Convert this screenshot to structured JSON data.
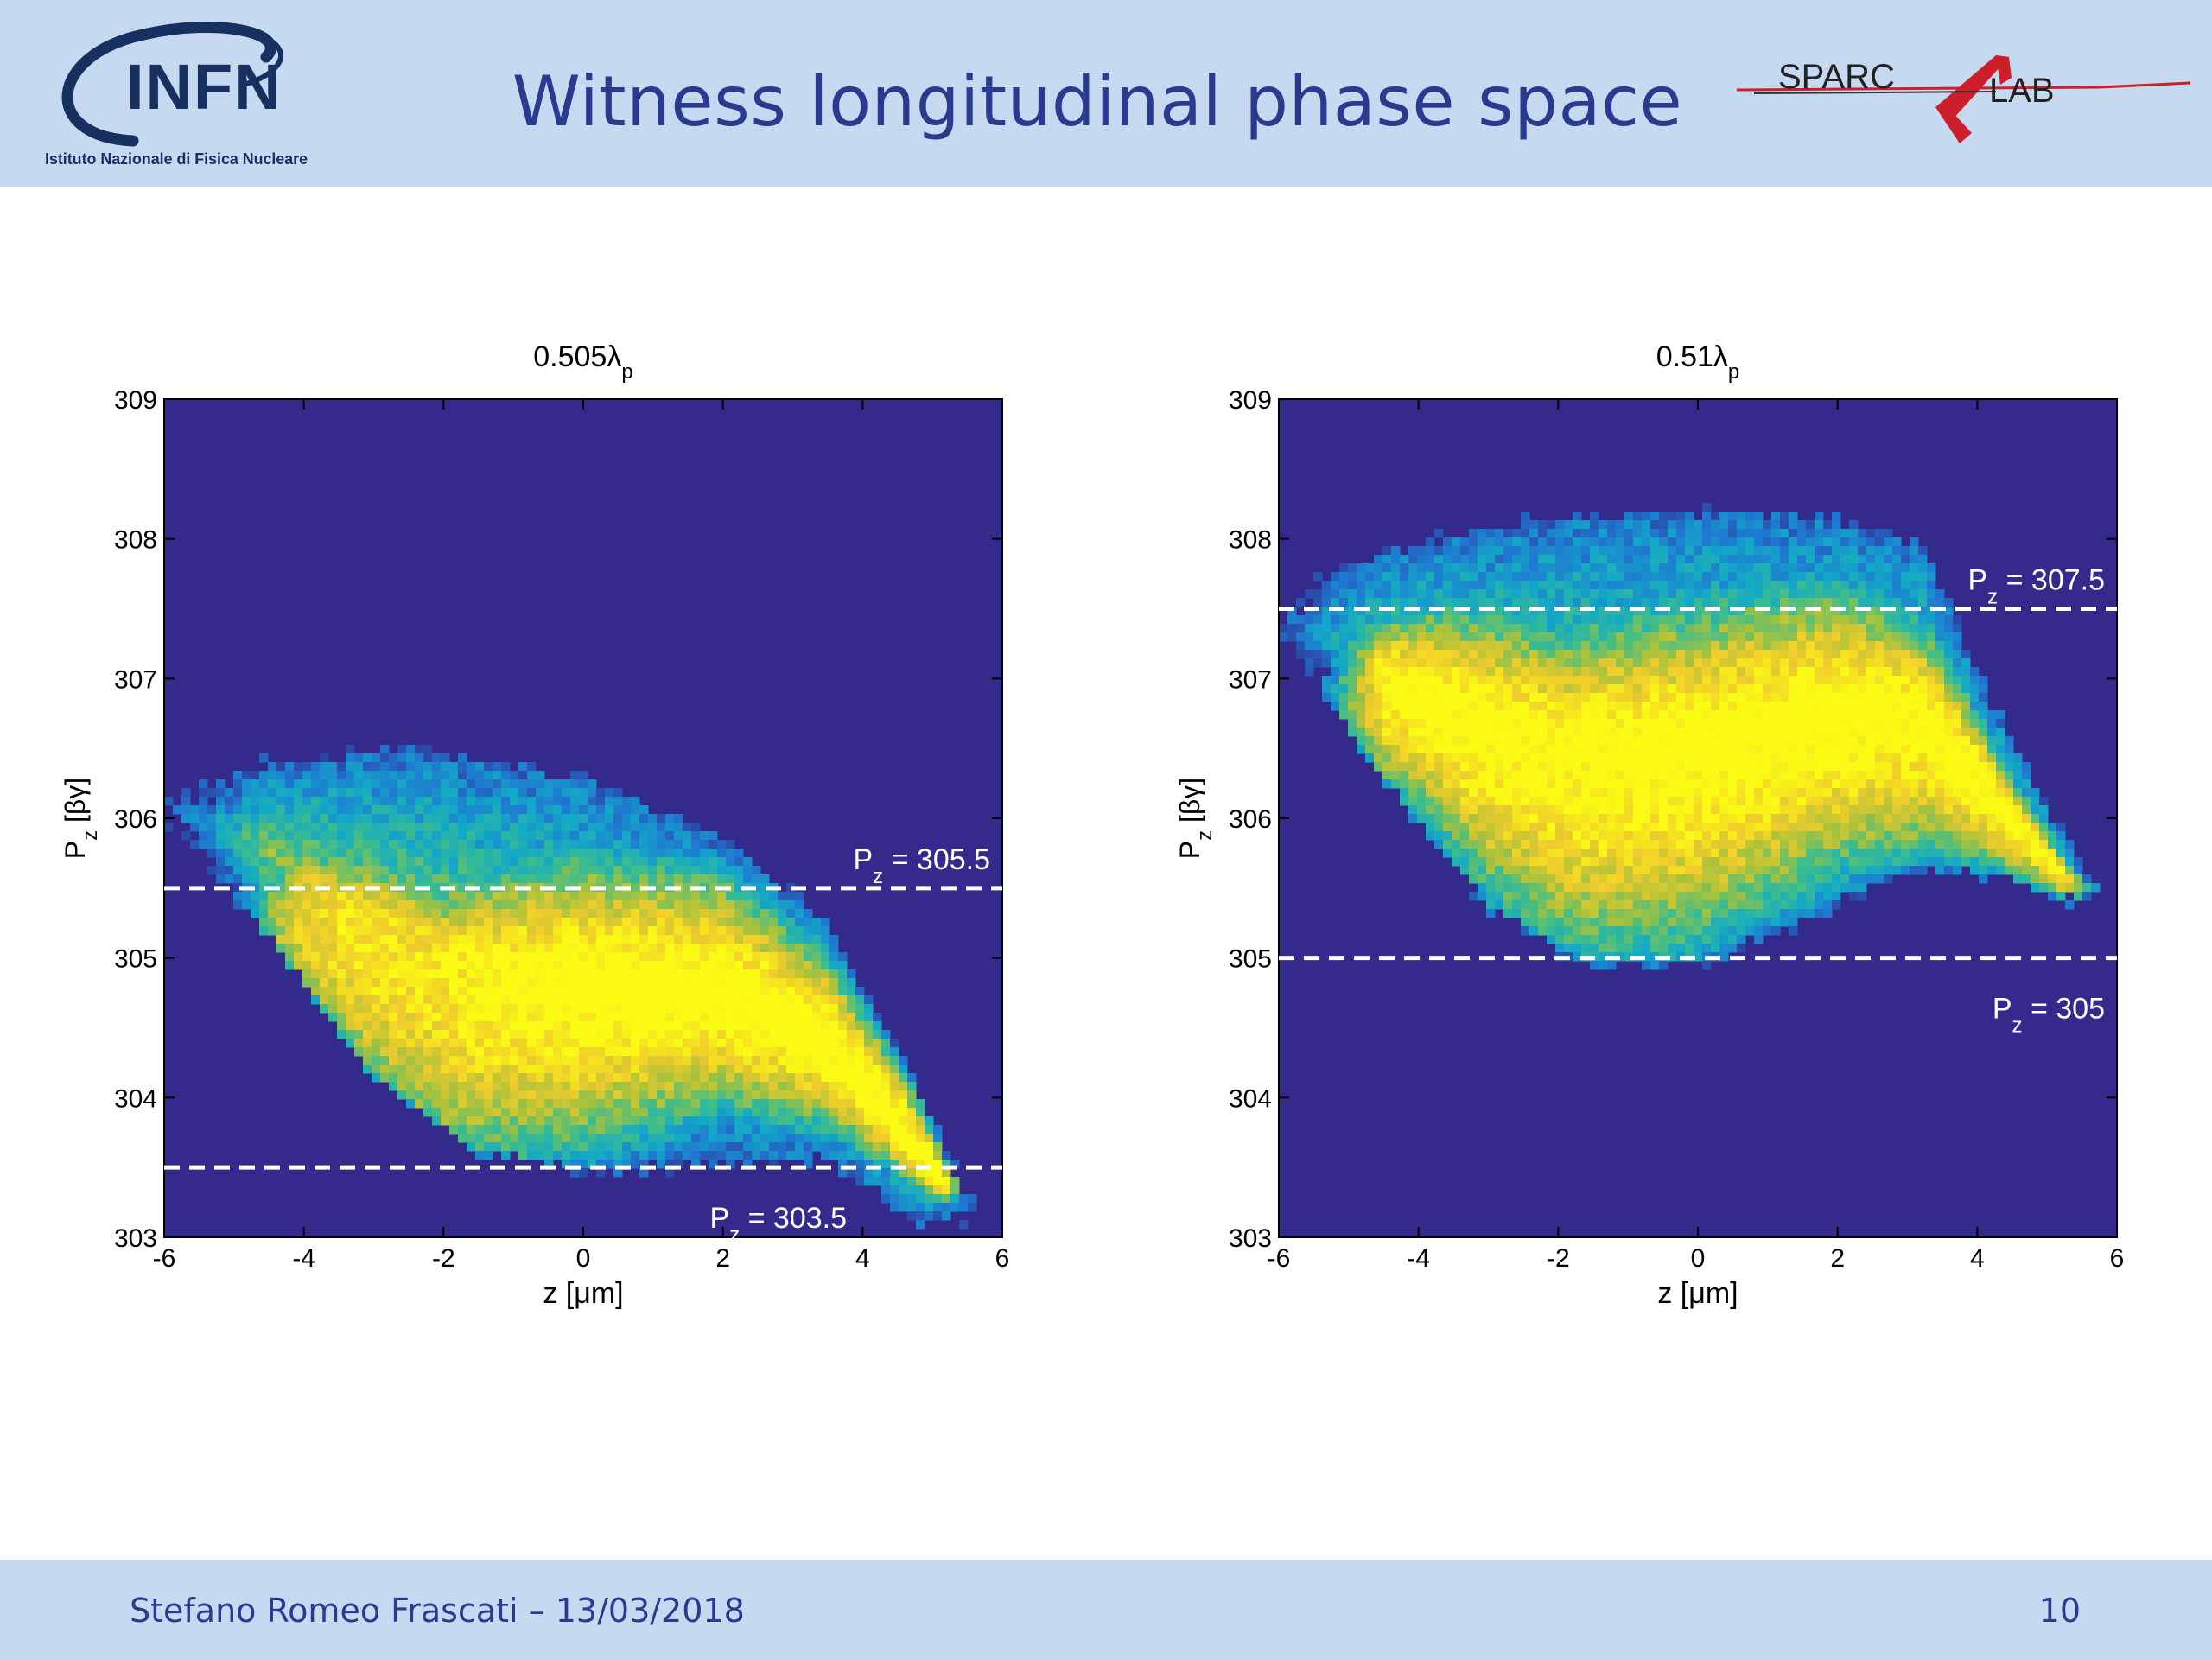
{
  "slide": {
    "title": "Witness longitudinal phase space",
    "author_date": "Stefano Romeo Frascati – 13/03/2018",
    "page_number": "10"
  },
  "logos": {
    "left": {
      "name": "infn-logo",
      "text": "INFN",
      "subtitle": "Istituto Nazionale di Fisica Nucleare"
    },
    "right": {
      "name": "sparc-lab-logo",
      "text_a": "SPARC",
      "text_b": "LAB"
    }
  },
  "colors": {
    "header_bg": "#c5d9f1",
    "title_text": "#2a3a8f",
    "plot_bg": "#332a8c",
    "dashed_line": "#ffffff",
    "colormap": [
      "#332a8c",
      "#1f78d1",
      "#13a9c7",
      "#3dbd8c",
      "#a8c23c",
      "#f0cc2c",
      "#fafa14"
    ]
  },
  "chart_data": [
    {
      "type": "heatmap",
      "title": "0.505λ",
      "title_subscript": "p",
      "xlabel": "z [μm]",
      "ylabel": "P",
      "ylabel_subscript": "z",
      "ylabel_unit": "[βγ]",
      "xlim": [
        -6,
        6
      ],
      "ylim": [
        303,
        309
      ],
      "xticks": [
        "-6",
        "-4",
        "-2",
        "0",
        "2",
        "4",
        "6"
      ],
      "yticks": [
        "303",
        "304",
        "305",
        "306",
        "307",
        "308",
        "309"
      ],
      "distribution": {
        "z_range": [
          -5.8,
          5.5
        ],
        "top_edge": [
          [
            -5.8,
            306.1
          ],
          [
            -4.5,
            306.35
          ],
          [
            -2.5,
            306.45
          ],
          [
            0,
            306.25
          ],
          [
            2,
            305.8
          ],
          [
            3.5,
            305.2
          ],
          [
            4.5,
            304.3
          ],
          [
            5.5,
            303.25
          ]
        ],
        "bottom_edge": [
          [
            -5.8,
            305.95
          ],
          [
            -4.5,
            305.2
          ],
          [
            -3,
            304.2
          ],
          [
            -1.5,
            303.65
          ],
          [
            0,
            303.5
          ],
          [
            2,
            303.6
          ],
          [
            3.5,
            303.6
          ],
          [
            4.8,
            303.15
          ],
          [
            5.5,
            303.2
          ]
        ],
        "peak_ridge": [
          [
            -4,
            305.0
          ],
          [
            -2,
            304.3
          ],
          [
            0,
            304.6
          ],
          [
            2,
            304.8
          ],
          [
            3.5,
            304.4
          ],
          [
            4.5,
            303.9
          ],
          [
            5.2,
            303.4
          ]
        ]
      },
      "lines": [
        {
          "y": 305.5,
          "label_p": "P",
          "label_sub": "z",
          "label_rest": " = 305.5",
          "label_pos": "above-right"
        },
        {
          "y": 303.5,
          "label_p": "P",
          "label_sub": "z",
          "label_rest": " = 303.5",
          "label_pos": "below-right"
        }
      ]
    },
    {
      "type": "heatmap",
      "title": "0.51λ",
      "title_subscript": "p",
      "xlabel": "z [μm]",
      "ylabel": "P",
      "ylabel_subscript": "z",
      "ylabel_unit": "[βγ]",
      "xlim": [
        -6,
        6
      ],
      "ylim": [
        303,
        309
      ],
      "xticks": [
        "-6",
        "-4",
        "-2",
        "0",
        "2",
        "4",
        "6"
      ],
      "yticks": [
        "303",
        "304",
        "305",
        "306",
        "307",
        "308",
        "309"
      ],
      "distribution": {
        "z_range": [
          -5.8,
          5.6
        ],
        "top_edge": [
          [
            -5.8,
            307.55
          ],
          [
            -4.5,
            307.85
          ],
          [
            -2.5,
            308.1
          ],
          [
            0,
            308.15
          ],
          [
            2,
            308.1
          ],
          [
            3.2,
            307.9
          ],
          [
            4.2,
            306.8
          ],
          [
            5.6,
            305.5
          ]
        ],
        "bottom_edge": [
          [
            -5.8,
            307.3
          ],
          [
            -4.5,
            306.3
          ],
          [
            -3,
            305.4
          ],
          [
            -1.5,
            305.0
          ],
          [
            0,
            305.0
          ],
          [
            1.5,
            305.3
          ],
          [
            3,
            305.7
          ],
          [
            4.5,
            305.6
          ],
          [
            5.6,
            305.4
          ]
        ],
        "peak_ridge": [
          [
            -4,
            306.7
          ],
          [
            -2,
            306.0
          ],
          [
            0,
            306.2
          ],
          [
            2,
            306.6
          ],
          [
            3.5,
            306.4
          ],
          [
            4.5,
            305.9
          ],
          [
            5.3,
            305.5
          ]
        ]
      },
      "lines": [
        {
          "y": 307.5,
          "label_p": "P",
          "label_sub": "z",
          "label_rest": " = 307.5",
          "label_pos": "above-right"
        },
        {
          "y": 305,
          "label_p": "P",
          "label_sub": "z",
          "label_rest": " = 305",
          "label_pos": "below-right"
        }
      ]
    }
  ]
}
